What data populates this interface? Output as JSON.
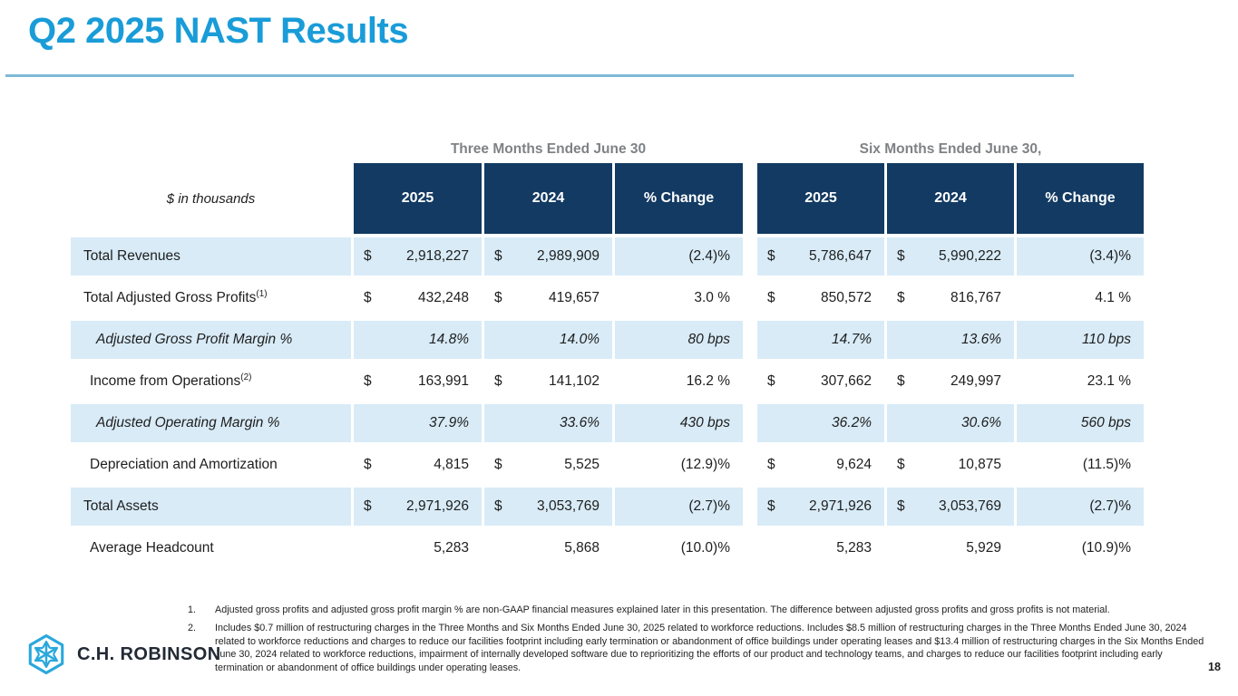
{
  "slide": {
    "title": "Q2 2025 NAST Results",
    "units_label": "$ in thousands",
    "page_number": "18"
  },
  "table": {
    "currency_symbol": "$",
    "groups": [
      {
        "title": "Three Months Ended June 30",
        "columns": [
          "2025",
          "2024",
          "% Change"
        ]
      },
      {
        "title": "Six Months Ended June 30,",
        "columns": [
          "2025",
          "2024",
          "% Change"
        ]
      }
    ],
    "rows": [
      {
        "label": "Total Revenues",
        "sup": "",
        "italic": false,
        "shaded": true,
        "indent": 0,
        "three": {
          "dollar": true,
          "v2025": "2,918,227",
          "v2024": "2,989,909",
          "change": "(2.4)%"
        },
        "six": {
          "dollar": true,
          "v2025": "5,786,647",
          "v2024": "5,990,222",
          "change": "(3.4)%"
        }
      },
      {
        "label": "Total Adjusted Gross Profits",
        "sup": "(1)",
        "italic": false,
        "shaded": false,
        "indent": 0,
        "three": {
          "dollar": true,
          "v2025": "432,248",
          "v2024": "419,657",
          "change": "3.0 %"
        },
        "six": {
          "dollar": true,
          "v2025": "850,572",
          "v2024": "816,767",
          "change": "4.1 %"
        }
      },
      {
        "label": "Adjusted Gross Profit Margin %",
        "sup": "",
        "italic": true,
        "shaded": true,
        "indent": 2,
        "three": {
          "dollar": false,
          "v2025": "14.8%",
          "v2024": "14.0%",
          "change": "80 bps"
        },
        "six": {
          "dollar": false,
          "v2025": "14.7%",
          "v2024": "13.6%",
          "change": "110 bps"
        }
      },
      {
        "label": "Income from Operations",
        "sup": "(2)",
        "italic": false,
        "shaded": false,
        "indent": 1,
        "three": {
          "dollar": true,
          "v2025": "163,991",
          "v2024": "141,102",
          "change": "16.2 %"
        },
        "six": {
          "dollar": true,
          "v2025": "307,662",
          "v2024": "249,997",
          "change": "23.1 %"
        }
      },
      {
        "label": "Adjusted Operating Margin %",
        "sup": "",
        "italic": true,
        "shaded": true,
        "indent": 2,
        "three": {
          "dollar": false,
          "v2025": "37.9%",
          "v2024": "33.6%",
          "change": "430 bps"
        },
        "six": {
          "dollar": false,
          "v2025": "36.2%",
          "v2024": "30.6%",
          "change": "560 bps"
        }
      },
      {
        "label": "Depreciation and Amortization",
        "sup": "",
        "italic": false,
        "shaded": false,
        "indent": 1,
        "three": {
          "dollar": true,
          "v2025": "4,815",
          "v2024": "5,525",
          "change": "(12.9)%"
        },
        "six": {
          "dollar": true,
          "v2025": "9,624",
          "v2024": "10,875",
          "change": "(11.5)%"
        }
      },
      {
        "label": "Total Assets",
        "sup": "",
        "italic": false,
        "shaded": true,
        "indent": 0,
        "three": {
          "dollar": true,
          "v2025": "2,971,926",
          "v2024": "3,053,769",
          "change": "(2.7)%"
        },
        "six": {
          "dollar": true,
          "v2025": "2,971,926",
          "v2024": "3,053,769",
          "change": "(2.7)%"
        }
      },
      {
        "label": "Average Headcount",
        "sup": "",
        "italic": false,
        "shaded": false,
        "indent": 1,
        "three": {
          "dollar": false,
          "v2025": "5,283",
          "v2024": "5,868",
          "change": "(10.0)%"
        },
        "six": {
          "dollar": false,
          "v2025": "5,283",
          "v2024": "5,929",
          "change": "(10.9)%"
        }
      }
    ]
  },
  "footnotes": [
    {
      "marker": "1.",
      "text": "Adjusted gross profits and adjusted gross profit margin % are non-GAAP financial measures explained later in this presentation. The difference between adjusted gross profits and gross profits is not material."
    },
    {
      "marker": "2.",
      "text": "Includes $0.7 million of restructuring charges in the Three Months and Six Months Ended June 30, 2025 related to workforce reductions. Includes $8.5 million of restructuring charges in the Three Months Ended June 30, 2024 related to workforce reductions and charges to reduce our facilities footprint including early termination or abandonment of office buildings under operating leases and $13.4 million of restructuring charges in the Six Months Ended June 30, 2024 related to workforce reductions, impairment of internally developed software due to reprioritizing the efforts of our product and technology teams, and charges to reduce our facilities footprint including early termination or abandonment of office buildings under operating leases."
    }
  ],
  "logo": {
    "company_name": "C.H. ROBINSON"
  },
  "colors": {
    "title_cyan": "#199CD8",
    "rule_blue": "#7EBAD6",
    "header_navy": "#123A62",
    "row_light_blue": "#D8EBF7",
    "group_title_gray": "#7F8285",
    "logo_cyan": "#29A8DC",
    "logo_navy": "#222A35"
  }
}
